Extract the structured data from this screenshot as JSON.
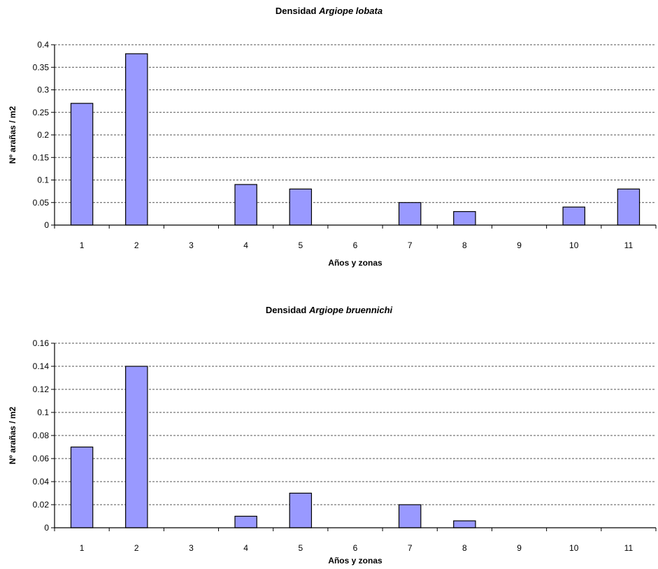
{
  "chart_data": [
    {
      "type": "bar",
      "title_prefix": "Densidad",
      "title_species": "Argiope lobata",
      "xlabel": "Años y zonas",
      "ylabel": "Nº arañas / m2",
      "categories": [
        "1",
        "2",
        "3",
        "4",
        "5",
        "6",
        "7",
        "8",
        "9",
        "10",
        "11"
      ],
      "values": [
        0.27,
        0.38,
        0,
        0.09,
        0.08,
        0,
        0.05,
        0.03,
        0,
        0.04,
        0.08
      ],
      "ylim": [
        0,
        0.4
      ],
      "yticks": [
        "0",
        "0.05",
        "0.1",
        "0.15",
        "0.2",
        "0.25",
        "0.3",
        "0.35",
        "0.4"
      ],
      "grid": true,
      "bar_color": "#9999ff"
    },
    {
      "type": "bar",
      "title_prefix": "Densidad",
      "title_species": "Argiope bruennichi",
      "xlabel": "Años y zonas",
      "ylabel": "Nº arañas / m2",
      "categories": [
        "1",
        "2",
        "3",
        "4",
        "5",
        "6",
        "7",
        "8",
        "9",
        "10",
        "11"
      ],
      "values": [
        0.07,
        0.14,
        0,
        0.01,
        0.03,
        0,
        0.02,
        0.006,
        0,
        0,
        0
      ],
      "ylim": [
        0,
        0.16
      ],
      "yticks": [
        "0",
        "0.02",
        "0.04",
        "0.06",
        "0.08",
        "0.1",
        "0.12",
        "0.14",
        "0.16"
      ],
      "grid": true,
      "bar_color": "#9999ff"
    }
  ]
}
